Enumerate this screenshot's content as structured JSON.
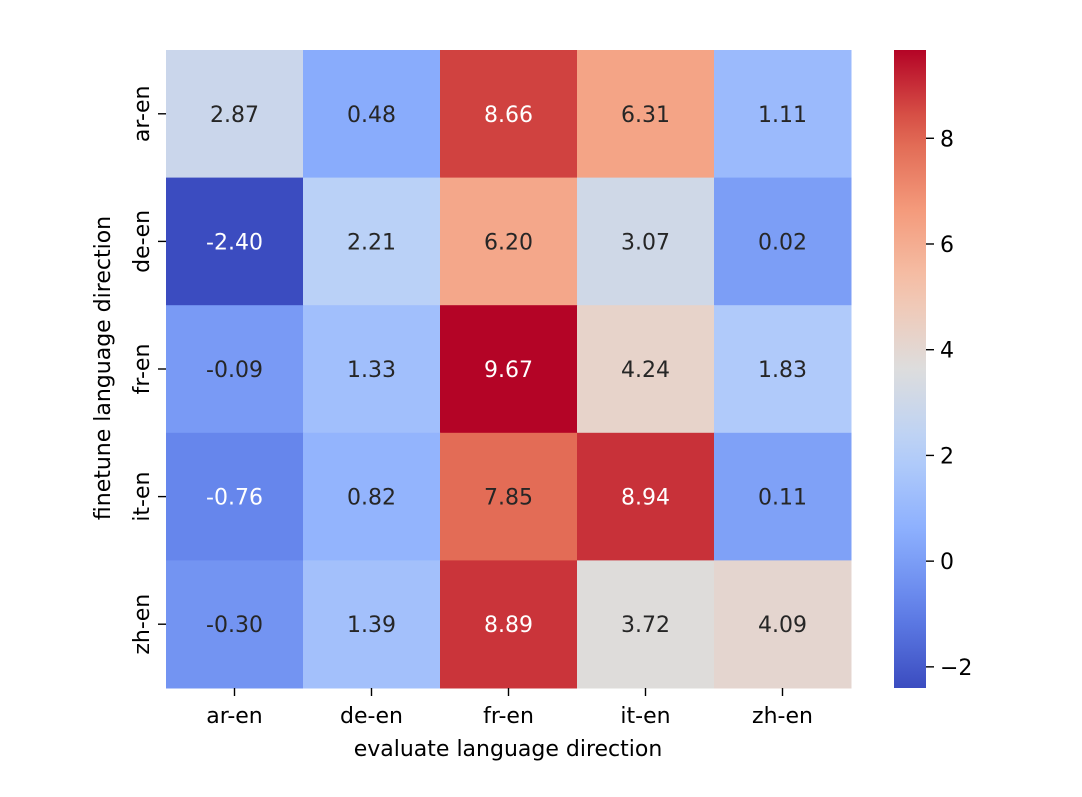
{
  "chart_data": {
    "type": "heatmap",
    "title": "",
    "xlabel": "evaluate language direction",
    "ylabel": "finetune language direction",
    "x_categories": [
      "ar-en",
      "de-en",
      "fr-en",
      "it-en",
      "zh-en"
    ],
    "y_categories": [
      "ar-en",
      "de-en",
      "fr-en",
      "it-en",
      "zh-en"
    ],
    "values": [
      [
        2.87,
        0.48,
        8.66,
        6.31,
        1.11
      ],
      [
        -2.4,
        2.21,
        6.2,
        3.07,
        0.02
      ],
      [
        -0.09,
        1.33,
        9.67,
        4.24,
        1.83
      ],
      [
        -0.76,
        0.82,
        7.85,
        8.94,
        0.11
      ],
      [
        -0.3,
        1.39,
        8.89,
        3.72,
        4.09
      ]
    ],
    "value_labels": [
      [
        "2.87",
        "0.48",
        "8.66",
        "6.31",
        "1.11"
      ],
      [
        "-2.40",
        "2.21",
        "6.20",
        "3.07",
        "0.02"
      ],
      [
        "-0.09",
        "1.33",
        "9.67",
        "4.24",
        "1.83"
      ],
      [
        "-0.76",
        "0.82",
        "7.85",
        "8.94",
        "0.11"
      ],
      [
        "-0.30",
        "1.39",
        "8.89",
        "3.72",
        "4.09"
      ]
    ],
    "colormap": "coolwarm",
    "color_range": [
      -2.4,
      9.67
    ],
    "colorbar_ticks": [
      -2,
      0,
      2,
      4,
      6,
      8
    ],
    "colorbar_tick_labels": [
      "−2",
      "0",
      "2",
      "4",
      "6",
      "8"
    ]
  }
}
